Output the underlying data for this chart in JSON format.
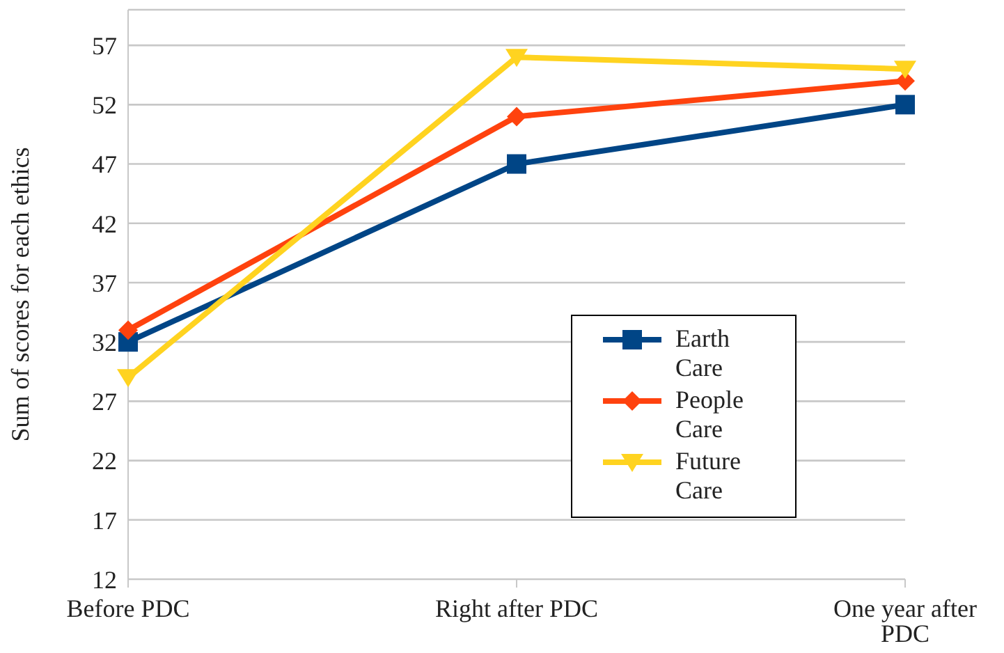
{
  "chart_data": {
    "type": "line",
    "ylabel": "Sum of scores for each ethics",
    "categories": [
      "Before PDC",
      "Right after PDC",
      "One year after PDC"
    ],
    "series": [
      {
        "name": "Earth Care",
        "color": "#004586",
        "marker": "square",
        "values": [
          32,
          47,
          52
        ]
      },
      {
        "name": "People Care",
        "color": "#ff420e",
        "marker": "diamond",
        "values": [
          33,
          51,
          54
        ]
      },
      {
        "name": "Future Care",
        "color": "#ffd320",
        "marker": "triangle",
        "values": [
          29,
          56,
          55
        ]
      }
    ],
    "ylim": [
      12,
      60
    ],
    "yticks": [
      12,
      17,
      22,
      27,
      32,
      37,
      42,
      47,
      52,
      57
    ],
    "grid": "y",
    "legend": "right",
    "line_style": "solid"
  }
}
